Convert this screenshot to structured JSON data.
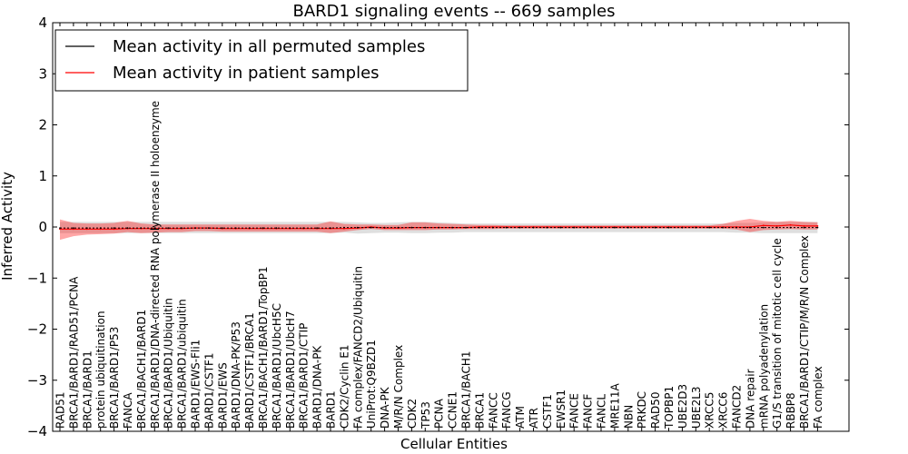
{
  "chart_data": {
    "type": "line",
    "title": "BARD1 signaling events -- 669 samples",
    "xlabel": "Cellular Entities",
    "ylabel": "Inferred Activity",
    "ylim": [
      -4,
      4
    ],
    "yticks": [
      -4,
      -3,
      -2,
      -1,
      0,
      1,
      2,
      3,
      4
    ],
    "ytick_labels": [
      "−4",
      "−3",
      "−2",
      "−1",
      "0",
      "1",
      "2",
      "3",
      "4"
    ],
    "legend": {
      "location": "top-left",
      "entries": [
        {
          "label": "Mean activity in all permuted samples",
          "color": "#000000"
        },
        {
          "label": "Mean activity in patient samples",
          "color": "#ff0000"
        }
      ]
    },
    "categories": [
      "RAD51",
      "BRCA1/BARD1/RAD51/PCNA",
      "BRCA1/BARD1",
      "protein ubiquitination",
      "BRCA1/BARD1/P53",
      "FANCA",
      "BRCA1/BACH1/BARD1",
      "BRCA1/BARD1/DNA-directed RNA polymerase II holoenzyme",
      "BRCA1/BARD1/Ubiquitin",
      "BRCA1/BARD1/ubiquitin",
      "BARD1/EWS-Fli1",
      "BARD1/CSTF1",
      "BARD1/EWS",
      "BARD1/DNA-PK/P53",
      "BARD1/CSTF1/BRCA1",
      "BRCA1/BACH1/BARD1/TopBP1",
      "BRCA1/BARD1/UbcH5C",
      "BRCA1/BARD1/UbcH7",
      "BRCA1/BARD1/CTIP",
      "BARD1/DNA-PK",
      "BARD1",
      "CDK2/Cyclin E1",
      "FA complex/FANCD2/Ubiquitin",
      "UniProt:Q9BZD1",
      "DNA-PK",
      "M/R/N Complex",
      "CDK2",
      "TP53",
      "PCNA",
      "CCNE1",
      "BRCA1/BACH1",
      "BRCA1",
      "FANCC",
      "FANCG",
      "ATM",
      "ATR",
      "CSTF1",
      "EWSR1",
      "FANCE",
      "FANCF",
      "FANCL",
      "MRE11A",
      "NBN",
      "PRKDC",
      "RAD50",
      "TOPBP1",
      "UBE2D3",
      "UBE2L3",
      "XRCC5",
      "XRCC6",
      "FANCD2",
      "DNA repair",
      "mRNA polyadenylation",
      "G1/S transition of mitotic cell cycle",
      "RBBP8",
      "BRCA1/BARD1/CTIP/M/R/N Complex",
      "FA complex"
    ],
    "series": [
      {
        "name": "Mean activity in all permuted samples",
        "color": "#000000",
        "values": [
          -0.02,
          -0.02,
          -0.02,
          -0.02,
          -0.02,
          -0.02,
          -0.02,
          -0.02,
          -0.02,
          -0.02,
          -0.02,
          -0.02,
          -0.02,
          -0.02,
          -0.02,
          -0.02,
          -0.02,
          -0.02,
          -0.02,
          -0.02,
          -0.02,
          -0.01,
          -0.01,
          -0.01,
          -0.01,
          -0.01,
          -0.01,
          -0.01,
          -0.01,
          -0.01,
          -0.01,
          -0.01,
          -0.01,
          -0.01,
          -0.01,
          -0.01,
          -0.01,
          -0.01,
          -0.01,
          -0.01,
          -0.01,
          -0.01,
          -0.01,
          -0.01,
          -0.01,
          -0.01,
          -0.01,
          -0.01,
          -0.01,
          -0.01,
          -0.01,
          -0.01,
          -0.01,
          -0.01,
          -0.01,
          -0.01,
          -0.01
        ],
        "band_lower": [
          -0.12,
          -0.12,
          -0.12,
          -0.12,
          -0.12,
          -0.12,
          -0.12,
          -0.12,
          -0.12,
          -0.12,
          -0.12,
          -0.12,
          -0.12,
          -0.12,
          -0.12,
          -0.12,
          -0.12,
          -0.12,
          -0.12,
          -0.12,
          -0.12,
          -0.11,
          -0.13,
          -0.12,
          -0.11,
          -0.11,
          -0.12,
          -0.12,
          -0.11,
          -0.11,
          -0.1,
          -0.1,
          -0.1,
          -0.1,
          -0.1,
          -0.1,
          -0.1,
          -0.1,
          -0.1,
          -0.1,
          -0.1,
          -0.1,
          -0.1,
          -0.1,
          -0.1,
          -0.1,
          -0.1,
          -0.1,
          -0.1,
          -0.1,
          -0.11,
          -0.11,
          -0.12,
          -0.12,
          -0.12,
          -0.12,
          -0.12
        ],
        "band_upper": [
          0.1,
          0.1,
          0.1,
          0.1,
          0.1,
          0.1,
          0.1,
          0.1,
          0.1,
          0.1,
          0.1,
          0.1,
          0.1,
          0.1,
          0.1,
          0.1,
          0.1,
          0.1,
          0.1,
          0.1,
          0.1,
          0.1,
          0.09,
          0.08,
          0.08,
          0.09,
          0.1,
          0.1,
          0.09,
          0.08,
          0.07,
          0.07,
          0.07,
          0.07,
          0.07,
          0.07,
          0.07,
          0.07,
          0.07,
          0.07,
          0.07,
          0.07,
          0.07,
          0.07,
          0.07,
          0.07,
          0.07,
          0.07,
          0.07,
          0.07,
          0.08,
          0.08,
          0.09,
          0.1,
          0.1,
          0.1,
          0.1
        ]
      },
      {
        "name": "Mean activity in patient samples",
        "color": "#ff0000",
        "values": [
          -0.04,
          -0.04,
          -0.04,
          -0.04,
          -0.04,
          -0.03,
          -0.03,
          -0.03,
          -0.03,
          -0.03,
          -0.02,
          -0.02,
          -0.03,
          -0.03,
          -0.03,
          -0.03,
          -0.03,
          -0.03,
          -0.03,
          -0.03,
          -0.03,
          -0.03,
          -0.02,
          0.0,
          -0.02,
          -0.02,
          -0.01,
          -0.01,
          -0.01,
          -0.01,
          -0.01,
          0.0,
          0.0,
          0.0,
          0.0,
          0.0,
          0.0,
          0.0,
          0.0,
          0.0,
          0.0,
          0.0,
          0.0,
          0.0,
          0.0,
          0.0,
          0.0,
          0.0,
          0.0,
          0.0,
          0.0,
          0.0,
          0.03,
          0.02,
          0.04,
          0.02,
          0.02
        ],
        "band_lower": [
          -0.25,
          -0.18,
          -0.15,
          -0.14,
          -0.13,
          -0.1,
          -0.12,
          -0.11,
          -0.1,
          -0.1,
          -0.08,
          -0.08,
          -0.09,
          -0.09,
          -0.09,
          -0.09,
          -0.09,
          -0.09,
          -0.09,
          -0.09,
          -0.12,
          -0.09,
          -0.06,
          -0.04,
          -0.06,
          -0.06,
          -0.06,
          -0.06,
          -0.05,
          -0.05,
          -0.04,
          -0.04,
          -0.04,
          -0.03,
          -0.03,
          -0.03,
          -0.03,
          -0.03,
          -0.03,
          -0.03,
          -0.03,
          -0.03,
          -0.03,
          -0.03,
          -0.03,
          -0.03,
          -0.03,
          -0.03,
          -0.03,
          -0.03,
          -0.05,
          -0.1,
          -0.06,
          -0.05,
          -0.04,
          -0.05,
          -0.05
        ],
        "band_upper": [
          0.15,
          0.08,
          0.07,
          0.07,
          0.08,
          0.12,
          0.07,
          0.05,
          0.05,
          0.05,
          0.05,
          0.05,
          0.05,
          0.05,
          0.05,
          0.05,
          0.05,
          0.05,
          0.05,
          0.05,
          0.11,
          0.06,
          0.05,
          0.05,
          0.04,
          0.04,
          0.09,
          0.09,
          0.07,
          0.06,
          0.05,
          0.04,
          0.04,
          0.03,
          0.03,
          0.03,
          0.03,
          0.03,
          0.03,
          0.03,
          0.03,
          0.03,
          0.03,
          0.03,
          0.03,
          0.03,
          0.03,
          0.03,
          0.03,
          0.06,
          0.12,
          0.16,
          0.12,
          0.1,
          0.12,
          0.1,
          0.09
        ]
      }
    ]
  }
}
